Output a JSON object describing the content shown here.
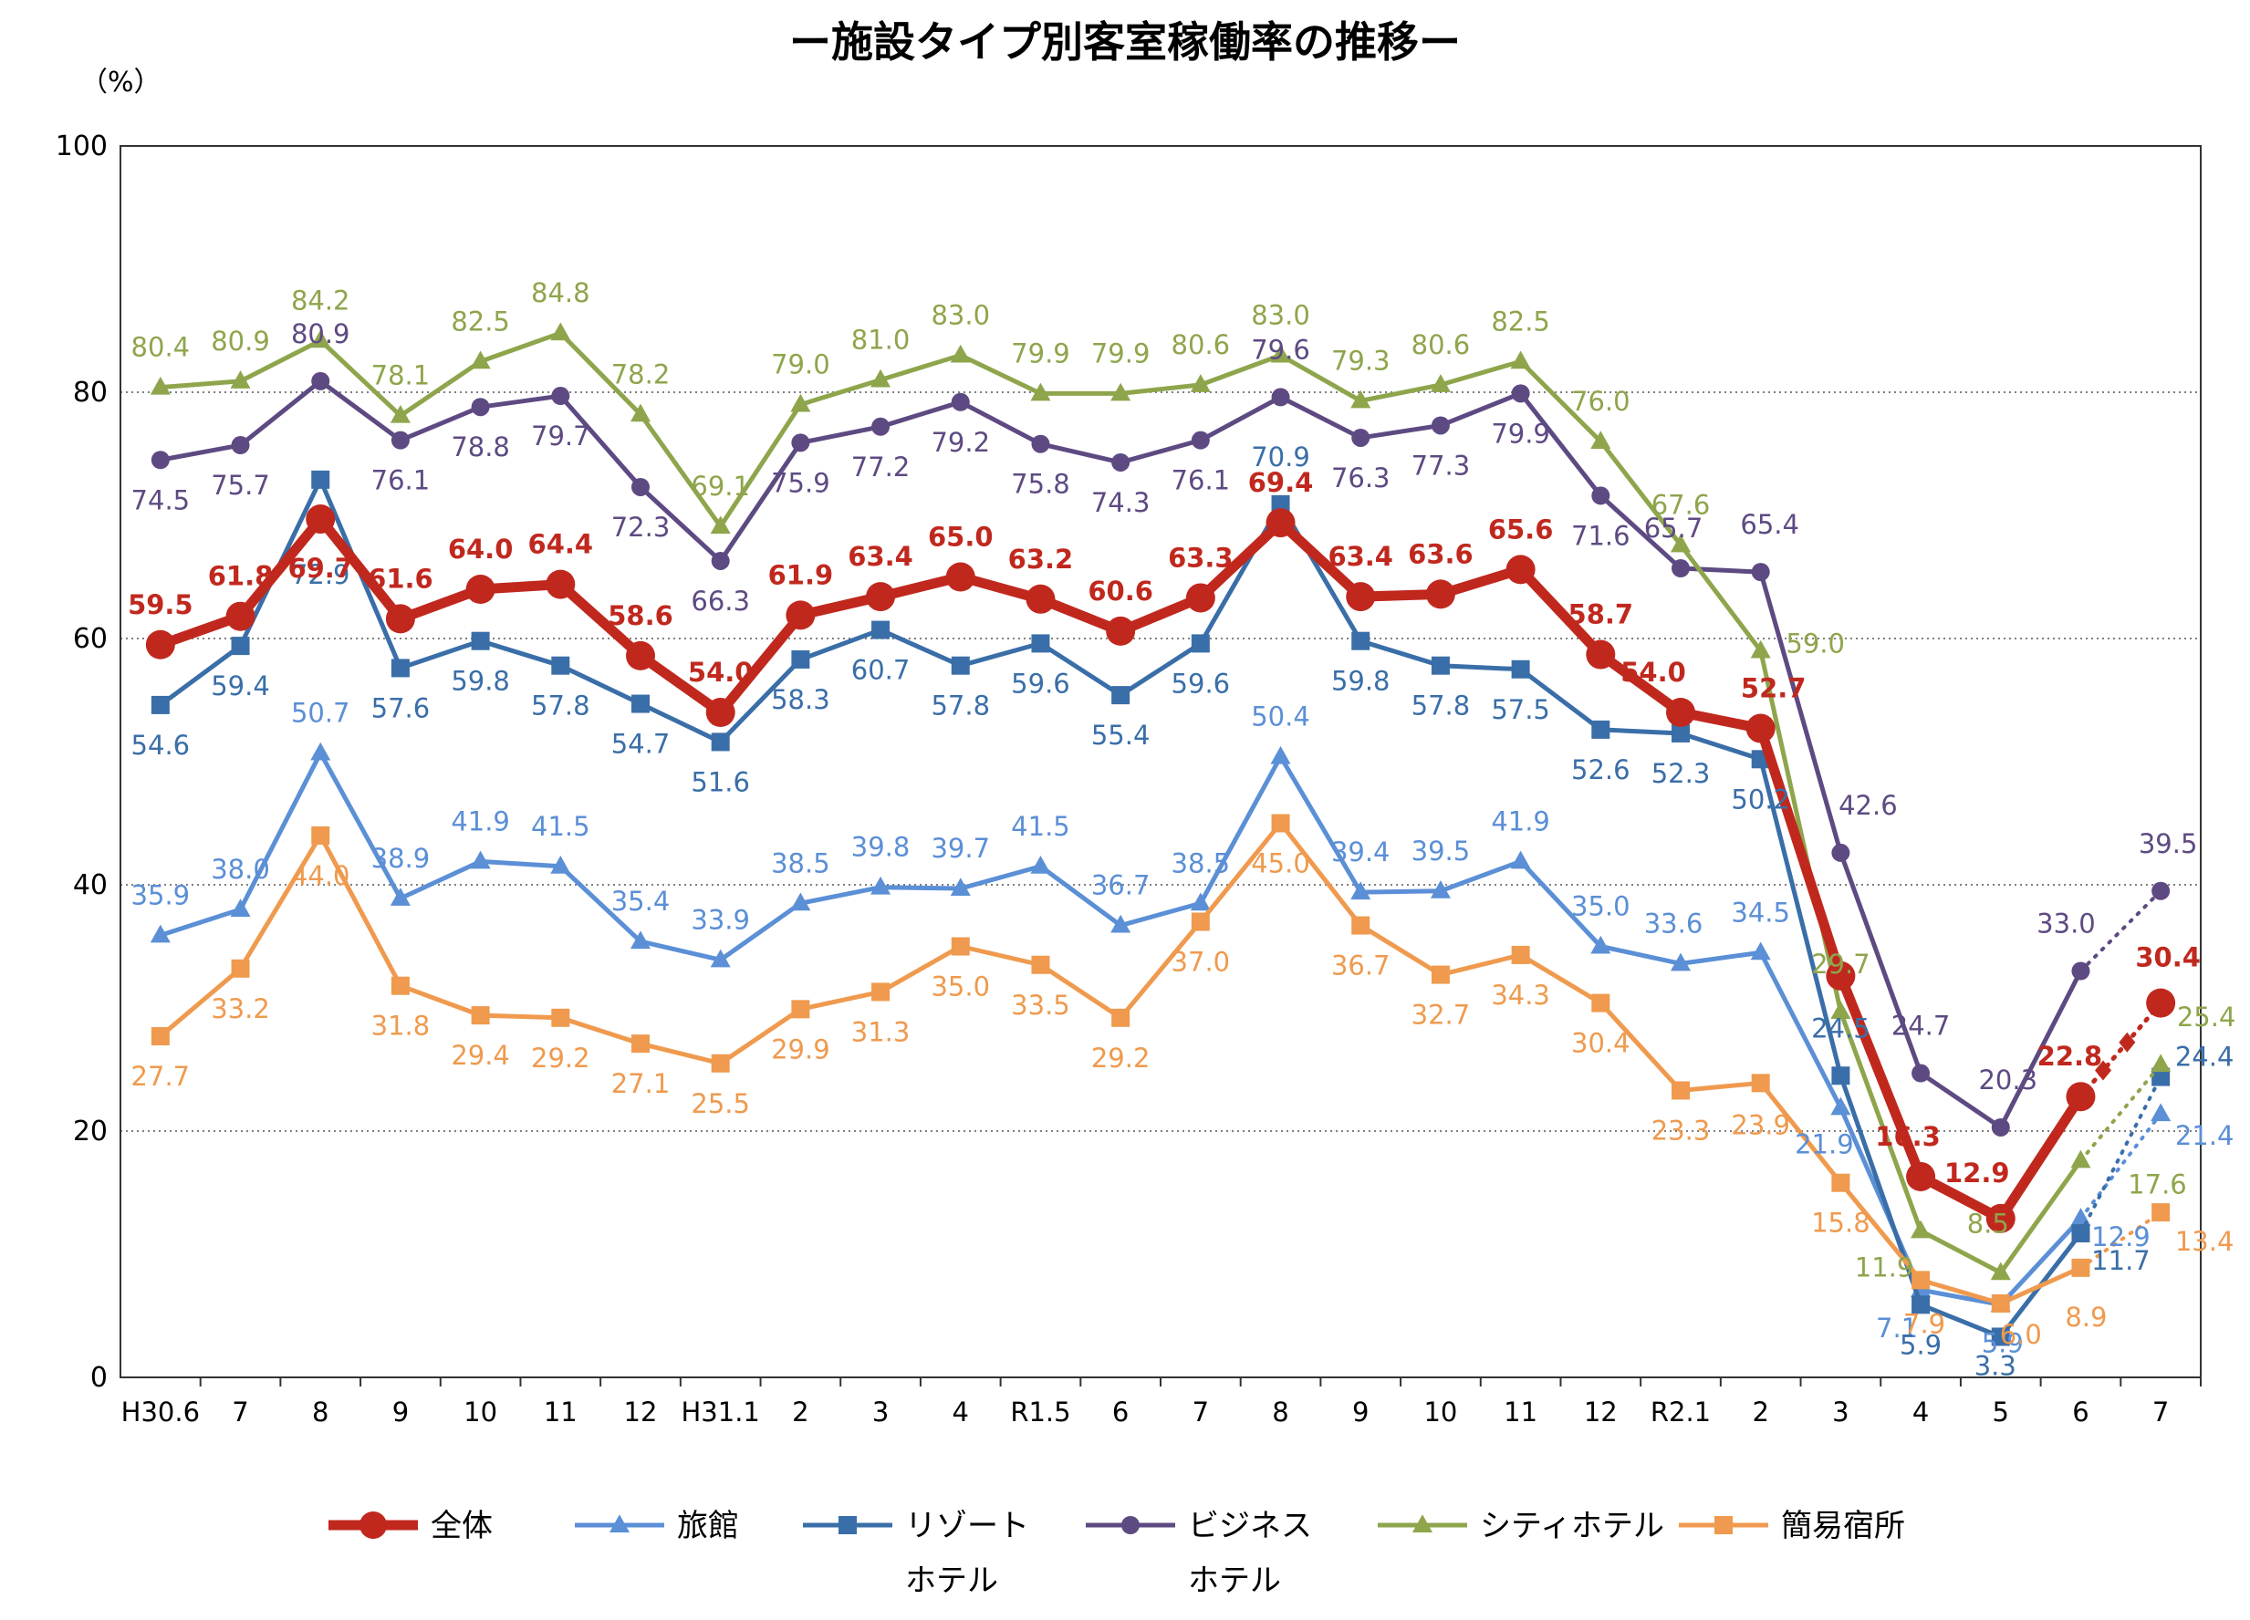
{
  "chart_data": {
    "type": "line",
    "title": "ー施設タイプ別客室稼働率の推移ー",
    "unit_label": "（%）",
    "ylim": [
      0,
      100
    ],
    "yticks": [
      0,
      20,
      40,
      60,
      80,
      100
    ],
    "grid": "horizontal dotted",
    "legend_position": "bottom",
    "categories": [
      "H30.6",
      "7",
      "8",
      "9",
      "10",
      "11",
      "12",
      "H31.1",
      "2",
      "3",
      "4",
      "R1.5",
      "6",
      "7",
      "8",
      "9",
      "10",
      "11",
      "12",
      "R2.1",
      "2",
      "3",
      "4",
      "5",
      "6",
      "7"
    ],
    "series": [
      {
        "key": "zentai",
        "name": "全体",
        "color": "#c0281e",
        "marker": "circle",
        "bold": true,
        "values": [
          59.5,
          61.8,
          69.7,
          61.6,
          64.0,
          64.4,
          58.6,
          54.0,
          61.9,
          63.4,
          65.0,
          63.2,
          60.6,
          63.3,
          69.4,
          63.4,
          63.6,
          65.6,
          58.7,
          54.0,
          52.7,
          null,
          16.3,
          12.9,
          22.8,
          30.4
        ],
        "unlabeled_points": [
          {
            "x": "3",
            "y": 32.6
          }
        ]
      },
      {
        "key": "ryokan",
        "name": "旅館",
        "color": "#5b8fd6",
        "marker": "triangle",
        "values": [
          35.9,
          38.0,
          50.7,
          38.9,
          41.9,
          41.5,
          35.4,
          33.9,
          38.5,
          39.8,
          39.7,
          41.5,
          36.7,
          38.5,
          50.4,
          39.4,
          39.5,
          41.9,
          35.0,
          33.6,
          34.5,
          21.9,
          7.1,
          5.9,
          12.9,
          21.4
        ]
      },
      {
        "key": "resort",
        "name": "リゾートホテル",
        "color": "#3a6ea8",
        "marker": "square",
        "values": [
          54.6,
          59.4,
          72.9,
          57.6,
          59.8,
          57.8,
          54.7,
          51.6,
          58.3,
          60.7,
          57.8,
          59.6,
          55.4,
          59.6,
          70.9,
          59.8,
          57.8,
          57.5,
          52.6,
          52.3,
          50.2,
          24.5,
          5.9,
          3.3,
          11.7,
          24.4
        ]
      },
      {
        "key": "business",
        "name": "ビジネスホテル",
        "color": "#5e4a82",
        "marker": "circle",
        "values": [
          74.5,
          75.7,
          80.9,
          76.1,
          78.8,
          79.7,
          72.3,
          66.3,
          75.9,
          77.2,
          79.2,
          75.8,
          74.3,
          76.1,
          79.6,
          76.3,
          77.3,
          79.9,
          71.6,
          65.7,
          65.4,
          42.6,
          24.7,
          20.3,
          33.0,
          39.5
        ]
      },
      {
        "key": "city",
        "name": "シティホテル",
        "color": "#8ea54c",
        "marker": "triangle",
        "values": [
          80.4,
          80.9,
          84.2,
          78.1,
          82.5,
          84.8,
          78.2,
          69.1,
          79.0,
          81.0,
          83.0,
          79.9,
          79.9,
          80.6,
          83.0,
          79.3,
          80.6,
          82.5,
          76.0,
          67.6,
          59.0,
          29.7,
          11.9,
          8.5,
          17.6,
          25.4
        ]
      },
      {
        "key": "kan-i",
        "name": "簡易宿所",
        "color": "#ef9a4e",
        "marker": "square",
        "values": [
          27.7,
          33.2,
          44.0,
          31.8,
          29.4,
          29.2,
          27.1,
          25.5,
          29.9,
          31.3,
          35.0,
          33.5,
          29.2,
          37.0,
          45.0,
          36.7,
          32.7,
          34.3,
          30.4,
          23.3,
          23.9,
          15.8,
          7.9,
          6.0,
          8.9,
          13.4
        ]
      }
    ],
    "legend": [
      {
        "key": "zentai",
        "label": "全体"
      },
      {
        "key": "ryokan",
        "label": "旅館"
      },
      {
        "key": "resort",
        "label": "リゾート",
        "label2": "ホテル"
      },
      {
        "key": "business",
        "label": "ビジネス",
        "label2": "ホテル"
      },
      {
        "key": "city",
        "label": "シティホテル"
      },
      {
        "key": "kan-i",
        "label": "簡易宿所"
      }
    ]
  }
}
